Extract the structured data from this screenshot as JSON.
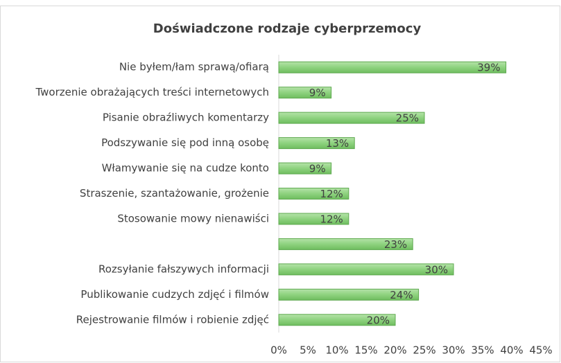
{
  "chart_data": {
    "type": "barh",
    "title": "Doświadczone rodzaje cyberprzemocy",
    "categories": [
      "Nie byłem/łam sprawą/ofiarą",
      "Tworzenie obrażających treści internetowych",
      "Pisanie obraźliwych komentarzy",
      "Podszywanie się pod inną osobę",
      "Włamywanie się na cudze konto",
      "Straszenie, szantażowanie, grożenie",
      "Stosowanie mowy nienawiści",
      null,
      "Rozsyłanie fałszywych informacji",
      "Publikowanie cudzych zdjęć i filmów",
      "Rejestrowanie filmów i robienie zdjęć"
    ],
    "values": [
      39,
      9,
      25,
      13,
      9,
      12,
      12,
      23,
      30,
      24,
      20
    ],
    "value_labels": [
      "39%",
      "9%",
      "25%",
      "13%",
      "9%",
      "12%",
      "12%",
      "23%",
      "30%",
      "24%",
      "20%"
    ],
    "color": "#8ed27f",
    "xlim": [
      0,
      45
    ],
    "xticks": [
      {
        "value": 0,
        "label": "0%"
      },
      {
        "value": 5,
        "label": "5%"
      },
      {
        "value": 10,
        "label": "10%"
      },
      {
        "value": 15,
        "label": "15%"
      },
      {
        "value": 20,
        "label": "20%"
      },
      {
        "value": 25,
        "label": "25%"
      },
      {
        "value": 30,
        "label": "30%"
      },
      {
        "value": 35,
        "label": "35%"
      },
      {
        "value": 40,
        "label": "40%"
      },
      {
        "value": 45,
        "label": "45%"
      }
    ]
  }
}
